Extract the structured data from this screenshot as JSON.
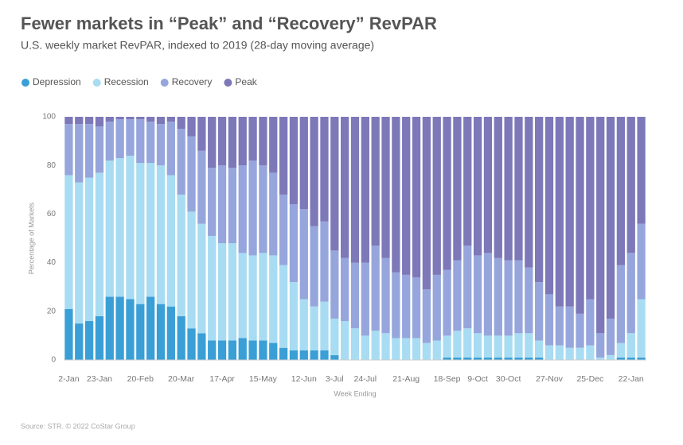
{
  "chart_data": {
    "type": "stacked-bar",
    "title": "Fewer markets in “Peak” and “Recovery” RevPAR",
    "subtitle": "U.S. weekly market RevPAR, indexed to 2019 (28-day moving average)",
    "x_label": "Week Ending",
    "y_label": "Percentage of Markets",
    "source": "Source: STR. © 2022 CoStar Group",
    "categories": [
      "2-Jan",
      null,
      null,
      "23-Jan",
      null,
      null,
      null,
      "20-Feb",
      null,
      null,
      null,
      "20-Mar",
      null,
      null,
      null,
      "17-Apr",
      null,
      null,
      null,
      "15-May",
      null,
      null,
      null,
      "12-Jun",
      null,
      null,
      "3-Jul",
      null,
      null,
      "24-Jul",
      null,
      null,
      null,
      "21-Aug",
      null,
      null,
      null,
      "18-Sep",
      null,
      null,
      "9-Oct",
      null,
      null,
      "30-Oct",
      null,
      null,
      null,
      "27-Nov",
      null,
      null,
      null,
      "25-Dec",
      null,
      null,
      null,
      "22-Jan",
      null
    ],
    "series": [
      {
        "name": "Depression",
        "color": "#3a9fd6",
        "values": [
          21,
          15,
          16,
          18,
          26,
          26,
          25,
          23,
          26,
          23,
          22,
          18,
          13,
          11,
          8,
          8,
          8,
          9,
          8,
          8,
          7,
          5,
          4,
          4,
          4,
          4,
          2,
          0,
          0,
          0,
          0,
          0,
          0,
          0,
          0,
          0,
          0,
          1,
          1,
          1,
          1,
          1,
          1,
          1,
          1,
          1,
          1,
          0,
          0,
          0,
          0,
          0,
          0,
          0,
          1,
          1,
          1
        ]
      },
      {
        "name": "Recession",
        "color": "#a8dcf2",
        "values": [
          55,
          58,
          59,
          59,
          56,
          57,
          59,
          58,
          55,
          57,
          54,
          50,
          48,
          45,
          43,
          40,
          40,
          35,
          35,
          36,
          36,
          34,
          28,
          21,
          18,
          20,
          15,
          16,
          13,
          10,
          12,
          11,
          9,
          9,
          9,
          7,
          8,
          9,
          11,
          12,
          10,
          9,
          9,
          9,
          10,
          10,
          7,
          6,
          6,
          5,
          5,
          6,
          1,
          2,
          6,
          10,
          24
        ]
      },
      {
        "name": "Recovery",
        "color": "#96a6dc",
        "values": [
          21,
          24,
          22,
          19,
          16,
          16,
          15,
          18,
          17,
          17,
          22,
          27,
          31,
          30,
          28,
          32,
          31,
          36,
          39,
          36,
          34,
          29,
          32,
          37,
          33,
          33,
          28,
          26,
          27,
          30,
          35,
          31,
          27,
          26,
          25,
          22,
          27,
          27,
          29,
          34,
          32,
          34,
          32,
          31,
          30,
          27,
          24,
          21,
          16,
          17,
          14,
          19,
          10,
          15,
          32,
          33,
          31
        ]
      },
      {
        "name": "Peak",
        "color": "#7d78b8",
        "values": [
          3,
          3,
          3,
          4,
          2,
          1,
          1,
          1,
          2,
          3,
          2,
          5,
          8,
          14,
          21,
          20,
          21,
          20,
          18,
          20,
          23,
          32,
          36,
          38,
          45,
          43,
          55,
          58,
          60,
          60,
          53,
          58,
          64,
          65,
          66,
          71,
          65,
          63,
          59,
          53,
          57,
          56,
          58,
          59,
          59,
          62,
          68,
          73,
          78,
          78,
          81,
          75,
          89,
          83,
          61,
          56,
          44
        ]
      }
    ],
    "ylim": [
      0,
      100
    ],
    "yticks": [
      0,
      20,
      40,
      60,
      80,
      100
    ],
    "grid": false
  }
}
